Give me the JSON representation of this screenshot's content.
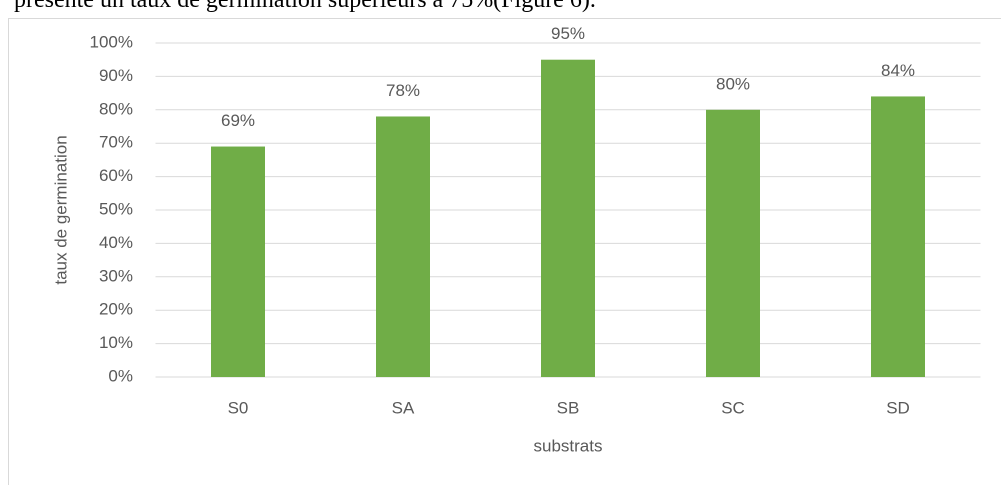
{
  "paragraph": "présente un taux de germination supérieurs à 75%(Figure 6).",
  "chart_data": {
    "type": "bar",
    "xlabel": "substrats",
    "ylabel": "taux de germination",
    "categories": [
      "S0",
      "SA",
      "SB",
      "SC",
      "SD"
    ],
    "values": [
      69,
      78,
      95,
      80,
      84
    ],
    "value_labels": [
      "69%",
      "78%",
      "95%",
      "80%",
      "84%"
    ],
    "color": "#70ad47",
    "ylim": [
      0,
      100
    ],
    "yticks": [
      {
        "value": 0,
        "label": "0%"
      },
      {
        "value": 10,
        "label": "10%"
      },
      {
        "value": 20,
        "label": "20%"
      },
      {
        "value": 30,
        "label": "30%"
      },
      {
        "value": 40,
        "label": "40%"
      },
      {
        "value": 50,
        "label": "50%"
      },
      {
        "value": 60,
        "label": "60%"
      },
      {
        "value": 70,
        "label": "70%"
      },
      {
        "value": 80,
        "label": "80%"
      },
      {
        "value": 90,
        "label": "90%"
      },
      {
        "value": 100,
        "label": "100%"
      }
    ],
    "grid": true
  }
}
